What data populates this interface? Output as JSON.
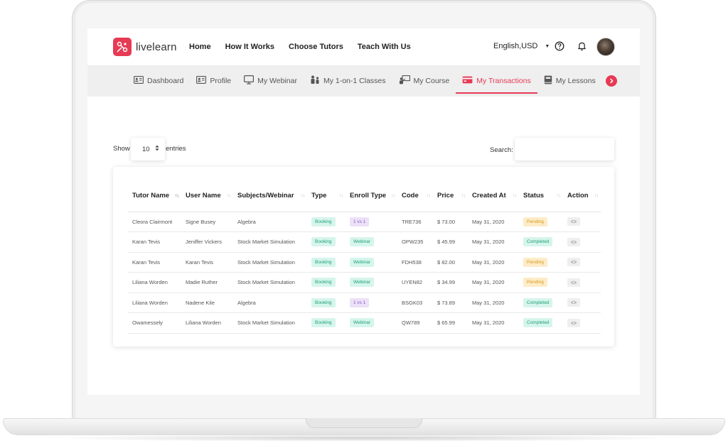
{
  "brand": {
    "name": "livelearn",
    "accent": "#e63a55"
  },
  "header": {
    "nav": [
      "Home",
      "How It Works",
      "Choose Tutors",
      "Teach With Us"
    ],
    "language": "English,USD"
  },
  "subnav": {
    "items": [
      {
        "label": "Dashboard",
        "icon": "id-card-icon"
      },
      {
        "label": "Profile",
        "icon": "profile-card-icon"
      },
      {
        "label": "My Webinar",
        "icon": "monitor-icon"
      },
      {
        "label": "My 1-on-1 Classes",
        "icon": "tutor-student-icon"
      },
      {
        "label": "My Course",
        "icon": "presentation-icon"
      },
      {
        "label": "My Transactions",
        "icon": "credit-card-icon",
        "active": true
      },
      {
        "label": "My Lessons",
        "icon": "book-icon"
      }
    ]
  },
  "controls": {
    "show_label": "Show",
    "entries_value": "10",
    "entries_label": "entries",
    "search_label": "Search:",
    "search_value": ""
  },
  "table": {
    "columns": [
      {
        "label": "Tutor Name",
        "sorted": true
      },
      {
        "label": "User Name"
      },
      {
        "label": "Subjects/Webinar"
      },
      {
        "label": "Type"
      },
      {
        "label": "Enroll Type"
      },
      {
        "label": "Code"
      },
      {
        "label": "Price"
      },
      {
        "label": "Created At"
      },
      {
        "label": "Status"
      },
      {
        "label": "Action"
      }
    ],
    "rows": [
      {
        "tutor": "Cleora Clairmont",
        "user": "Signe Busey",
        "subject": "Algebra",
        "type": "Booking",
        "enroll": "1 vs 1",
        "code": "TRE736",
        "price": "$ 73.00",
        "created": "May 31, 2020",
        "status": "Pending"
      },
      {
        "tutor": "Karan Tevis",
        "user": "Jeniffer Vickers",
        "subject": "Stock Market Simulation",
        "type": "Booking",
        "enroll": "Webinar",
        "code": "OPW235",
        "price": "$ 45.99",
        "created": "May 31, 2020",
        "status": "Completed"
      },
      {
        "tutor": "Karan Tevis",
        "user": "Karan Tevis",
        "subject": "Stock Market Simulation",
        "type": "Booking",
        "enroll": "Webinar",
        "code": "FDH538",
        "price": "$ 82.00",
        "created": "May 31, 2020",
        "status": "Pending"
      },
      {
        "tutor": "Liliana Worden",
        "user": "Madie Ruther",
        "subject": "Stock Market Simulation",
        "type": "Booking",
        "enroll": "Webinar",
        "code": "UYEN82",
        "price": "$ 34.99",
        "created": "May 31, 2020",
        "status": "Pending"
      },
      {
        "tutor": "Liliana Worden",
        "user": "Nadene Kile",
        "subject": "Algebra",
        "type": "Booking",
        "enroll": "1 vs 1",
        "code": "BSGK03",
        "price": "$ 73.89",
        "created": "May 31, 2020",
        "status": "Completed"
      },
      {
        "tutor": "Owamessely",
        "user": "Liliana Worden",
        "subject": "Stock Market Simulation",
        "type": "Booking",
        "enroll": "Webinar",
        "code": "QW789",
        "price": "$ 65.99",
        "created": "May 31, 2020",
        "status": "Completed"
      }
    ]
  }
}
